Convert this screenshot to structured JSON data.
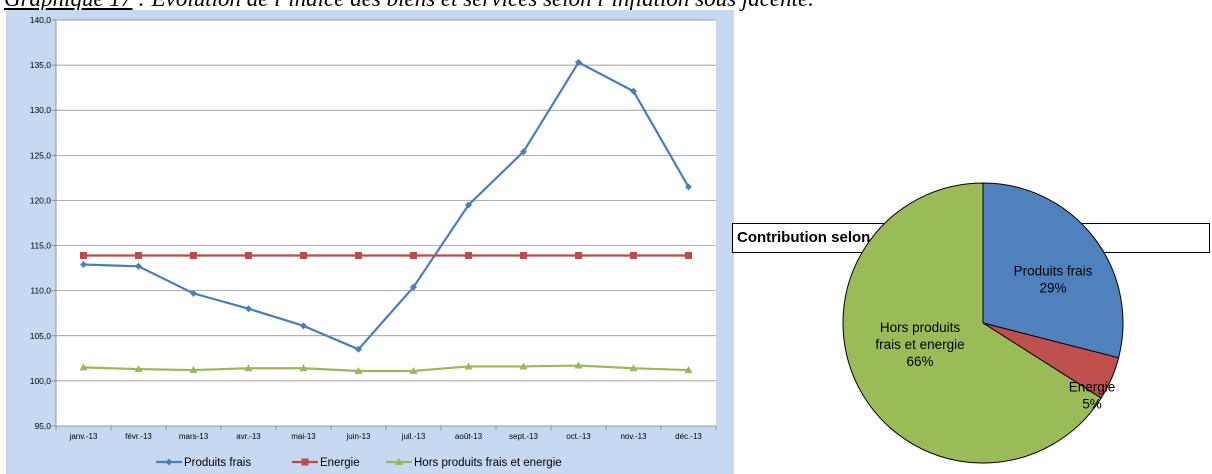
{
  "header": {
    "title_prefix": "Graphique 17",
    "title_rest": " : Evolution de l’indice des biens et services selon l’inflation sous jacente."
  },
  "chart_data": [
    {
      "type": "line",
      "title": "",
      "categories": [
        "janv.-13",
        "févr.-13",
        "mars-13",
        "avr.-13",
        "mai-13",
        "juin-13",
        "juil.-13",
        "août-13",
        "sept.-13",
        "oct.-13",
        "nov.-13",
        "déc.-13"
      ],
      "series": [
        {
          "name": "Produits frais",
          "color": "#4a7ebb",
          "marker": "diamond",
          "values": [
            112.9,
            112.7,
            109.7,
            108.0,
            106.1,
            103.5,
            110.4,
            119.5,
            125.4,
            135.3,
            132.1,
            121.5
          ]
        },
        {
          "name": "Energie",
          "color": "#be4b48",
          "marker": "square",
          "values": [
            113.9,
            113.9,
            113.9,
            113.9,
            113.9,
            113.9,
            113.9,
            113.9,
            113.9,
            113.9,
            113.9,
            113.9
          ]
        },
        {
          "name": "Hors produits frais et energie",
          "color": "#98b954",
          "marker": "triangle",
          "values": [
            101.5,
            101.3,
            101.2,
            101.4,
            101.4,
            101.1,
            101.1,
            101.6,
            101.6,
            101.7,
            101.4,
            101.2
          ]
        }
      ],
      "ylim": [
        95,
        140
      ],
      "ytick_step": 5,
      "ytick_labels": [
        "95,0",
        "100,0",
        "105,0",
        "110,0",
        "115,0",
        "120,0",
        "125,0",
        "130,0",
        "135,0",
        "140,0"
      ],
      "grid": true,
      "legend": "bottom"
    },
    {
      "type": "pie",
      "title": "Contribution  selon selon l’inflation sous jacente",
      "slices": [
        {
          "label": "Produits frais",
          "value": 29,
          "pct": "29%",
          "color": "#4f81bd"
        },
        {
          "label": "Energie",
          "value": 5,
          "pct": "5%",
          "color": "#c0504d"
        },
        {
          "label": "Hors produits frais et energie",
          "value": 66,
          "pct": "66%",
          "color": "#9bbb59"
        }
      ],
      "slice_label_lines": [
        [
          "Produits frais",
          "29%"
        ],
        [
          "Energie",
          "5%"
        ],
        [
          "Hors produits",
          "frais et energie",
          "66%"
        ]
      ]
    }
  ]
}
